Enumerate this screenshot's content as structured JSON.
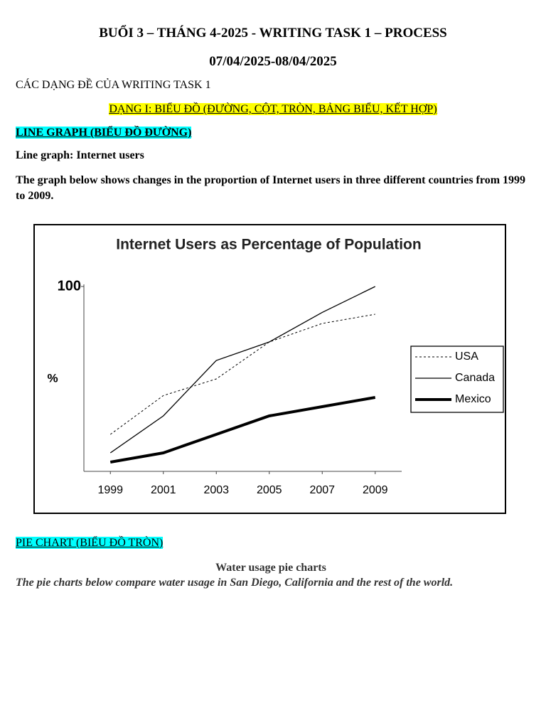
{
  "header": {
    "title": "BUỔI 3 – THÁNG 4-2025 - WRITING TASK 1 – PROCESS",
    "date": "07/04/2025-08/04/2025"
  },
  "body": {
    "section_heading": "CÁC DẠNG ĐỀ CỦA WRITING TASK 1",
    "type_heading": "DẠNG I: BIỂU ĐỒ (ĐƯỜNG, CỘT, TRÒN, BẢNG BIỂU, KẾT HỢP)",
    "line_heading": "LINE GRAPH (BIỂU ĐỒ ĐƯỜNG)",
    "line_subtitle": "Line graph: Internet users",
    "line_prompt": "The graph below shows changes in the proportion of Internet users in three different countries from 1999 to 2009."
  },
  "chart_data": {
    "type": "line",
    "title": "Internet Users as Percentage of Population",
    "y_label": "%",
    "x": [
      1999,
      2001,
      2003,
      2005,
      2007,
      2009
    ],
    "xlim": [
      1998,
      2010
    ],
    "xticks": [
      1999,
      2001,
      2003,
      2005,
      2007,
      2009
    ],
    "ylim": [
      0,
      100
    ],
    "yticks": [
      100
    ],
    "legend": "right",
    "series": [
      {
        "name": "USA",
        "color": "#000000",
        "style": "dotted",
        "width": 1,
        "values": [
          20,
          41,
          50,
          70,
          80,
          85
        ]
      },
      {
        "name": "Canada",
        "color": "#000000",
        "style": "solid",
        "width": 1.3,
        "values": [
          10,
          30,
          60,
          70,
          86,
          100
        ]
      },
      {
        "name": "Mexico",
        "color": "#000000",
        "style": "solid",
        "width": 4,
        "values": [
          5,
          10,
          20,
          30,
          35,
          40
        ]
      }
    ]
  },
  "pie_section": {
    "heading": "PIE CHART (BIỂU ĐỒ TRÒN)",
    "title": "Water usage pie charts",
    "prompt": "The pie charts below compare water usage in San Diego, California and the rest of the world."
  }
}
